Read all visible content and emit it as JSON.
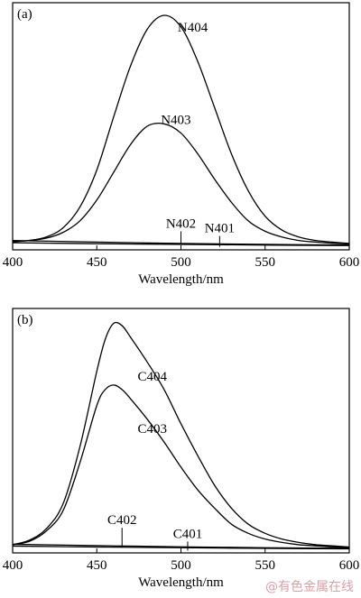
{
  "chart_data": [
    {
      "type": "line",
      "panel_label": "(a)",
      "xlabel": "Wavelength/nm",
      "ylabel": "",
      "xlim": [
        400,
        600
      ],
      "ylim": [
        0,
        1.0
      ],
      "x_ticks": [
        400,
        450,
        500,
        550,
        600
      ],
      "grid": false,
      "series": [
        {
          "name": "N404",
          "x": [
            400,
            410,
            420,
            430,
            440,
            450,
            460,
            470,
            480,
            490,
            500,
            510,
            520,
            530,
            540,
            550,
            560,
            570,
            580,
            590,
            600
          ],
          "values": [
            0.02,
            0.025,
            0.04,
            0.08,
            0.17,
            0.33,
            0.56,
            0.78,
            0.94,
            1.0,
            0.95,
            0.8,
            0.6,
            0.4,
            0.24,
            0.13,
            0.07,
            0.04,
            0.025,
            0.018,
            0.012
          ]
        },
        {
          "name": "N403",
          "x": [
            400,
            410,
            420,
            430,
            440,
            450,
            460,
            470,
            480,
            490,
            500,
            510,
            520,
            530,
            540,
            550,
            560,
            570,
            580,
            590,
            600
          ],
          "values": [
            0.02,
            0.025,
            0.035,
            0.06,
            0.11,
            0.2,
            0.32,
            0.44,
            0.52,
            0.53,
            0.49,
            0.4,
            0.29,
            0.19,
            0.11,
            0.065,
            0.04,
            0.025,
            0.018,
            0.013,
            0.01
          ]
        },
        {
          "name": "N402",
          "x": [
            400,
            450,
            500,
            550,
            600
          ],
          "values": [
            0.025,
            0.018,
            0.012,
            0.008,
            0.005
          ]
        },
        {
          "name": "N401",
          "x": [
            400,
            450,
            500,
            550,
            600
          ],
          "values": [
            0.015,
            0.011,
            0.008,
            0.005,
            0.003
          ]
        }
      ],
      "annotations": [
        {
          "text": "N404",
          "x": 507,
          "y": 0.93
        },
        {
          "text": "N403",
          "x": 497,
          "y": 0.53
        },
        {
          "text": "N402",
          "x": 500,
          "y": 0.08
        },
        {
          "text": "N401",
          "x": 523,
          "y": 0.06
        }
      ]
    },
    {
      "type": "line",
      "panel_label": "(b)",
      "xlabel": "Wavelength/nm",
      "ylabel": "",
      "xlim": [
        400,
        600
      ],
      "ylim": [
        0,
        1.0
      ],
      "x_ticks": [
        400,
        450,
        500,
        550,
        600
      ],
      "grid": false,
      "series": [
        {
          "name": "C404",
          "x": [
            400,
            410,
            420,
            430,
            440,
            450,
            455,
            460,
            465,
            470,
            480,
            490,
            500,
            510,
            520,
            530,
            540,
            550,
            560,
            570,
            580,
            590,
            600
          ],
          "values": [
            0.02,
            0.04,
            0.09,
            0.2,
            0.45,
            0.78,
            0.92,
            0.99,
            0.98,
            0.93,
            0.82,
            0.7,
            0.55,
            0.41,
            0.28,
            0.18,
            0.11,
            0.07,
            0.045,
            0.03,
            0.02,
            0.015,
            0.01
          ]
        },
        {
          "name": "C403",
          "x": [
            400,
            410,
            420,
            430,
            440,
            450,
            455,
            460,
            465,
            470,
            480,
            490,
            500,
            510,
            520,
            530,
            540,
            550,
            560,
            570,
            580,
            590,
            600
          ],
          "values": [
            0.02,
            0.035,
            0.08,
            0.17,
            0.38,
            0.63,
            0.7,
            0.72,
            0.7,
            0.66,
            0.57,
            0.47,
            0.36,
            0.26,
            0.18,
            0.11,
            0.07,
            0.045,
            0.03,
            0.02,
            0.015,
            0.01,
            0.008
          ]
        },
        {
          "name": "C402",
          "x": [
            400,
            450,
            500,
            550,
            600
          ],
          "values": [
            0.022,
            0.016,
            0.011,
            0.007,
            0.004
          ]
        },
        {
          "name": "C401",
          "x": [
            400,
            450,
            500,
            550,
            600
          ],
          "values": [
            0.014,
            0.01,
            0.007,
            0.004,
            0.002
          ]
        }
      ],
      "annotations": [
        {
          "text": "C404",
          "x": 483,
          "y": 0.74
        },
        {
          "text": "C403",
          "x": 483,
          "y": 0.51
        },
        {
          "text": "C402",
          "x": 465,
          "y": 0.11
        },
        {
          "text": "C401",
          "x": 504,
          "y": 0.05
        }
      ]
    }
  ],
  "watermark": "@有色金属在线"
}
